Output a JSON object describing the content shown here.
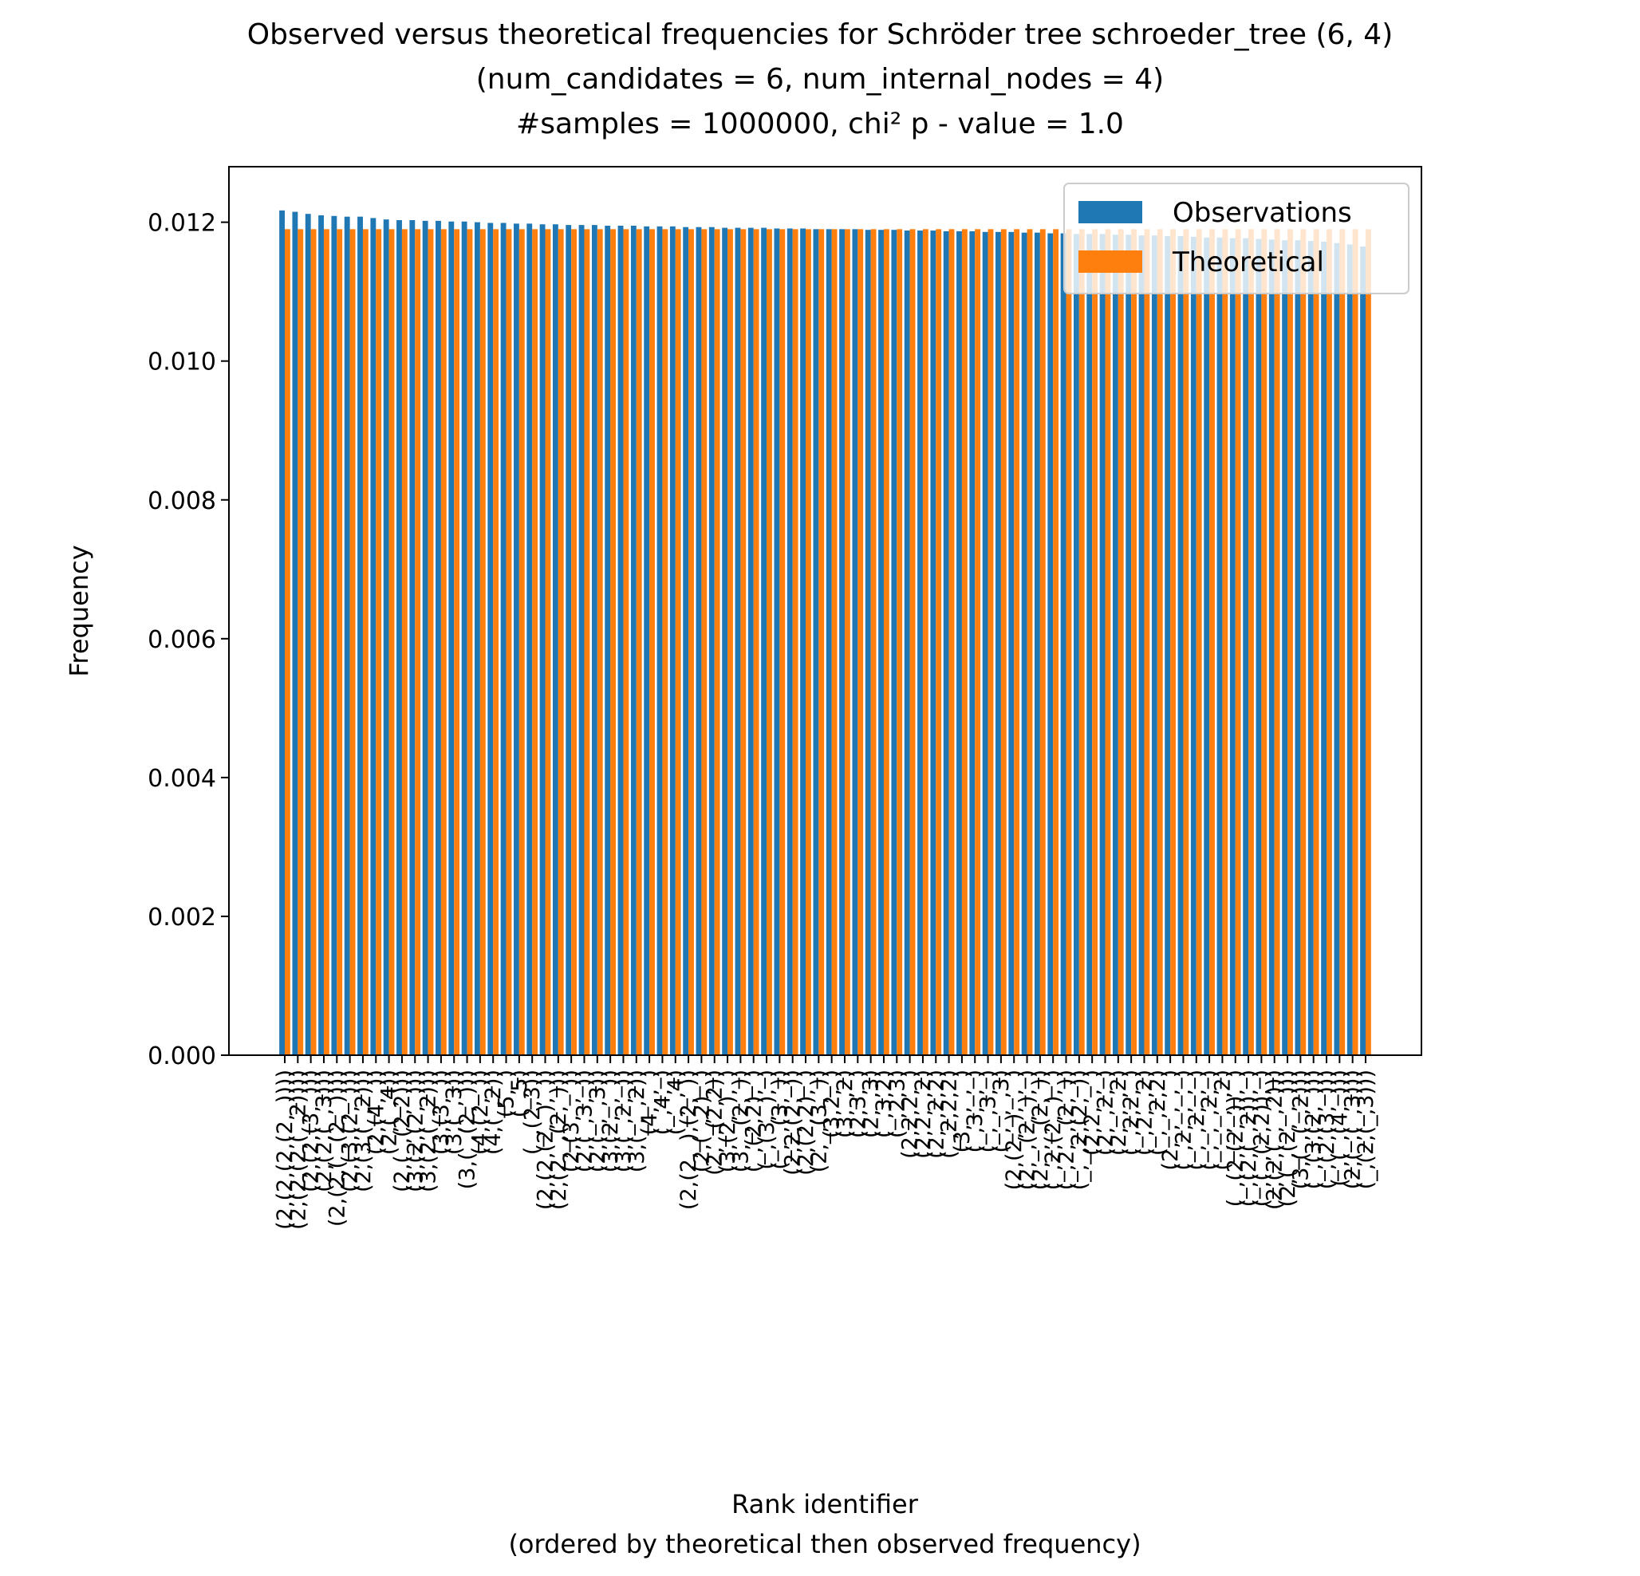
{
  "chart_data": {
    "type": "bar",
    "title": [
      "Observed versus theoretical frequencies for Schröder tree schroeder_tree (6, 4)",
      "(num_candidates = 6, num_internal_nodes = 4)",
      "#samples = 1000000, chi² p - value = 1.0"
    ],
    "xlabel": [
      "Rank identifier",
      "(ordered by theoretical then observed frequency)"
    ],
    "ylabel": "Frequency",
    "ylim": [
      0,
      0.0128
    ],
    "yticks": [
      0.0,
      0.002,
      0.004,
      0.006,
      0.008,
      0.01,
      0.012
    ],
    "ytick_labels": [
      "0.000",
      "0.002",
      "0.004",
      "0.006",
      "0.008",
      "0.010",
      "0.012"
    ],
    "legend": {
      "placement": "top-right"
    },
    "categories": [
      "(2,(2,(2,(2,_))))",
      "(2,(2,(2,(_,2))))",
      "(2,(2,(3,_)))",
      "(2,(2,(_,3)))",
      "(2,(2,(_,(2,_))))",
      "(2,(3,(2,_)))",
      "(2,(3,(_,2)))",
      "(2,(4,_))",
      "(2,(_,4))",
      "(2,(_,(2,2)))",
      "(3,(2,(2,_)))",
      "(3,(2,(_,2)))",
      "(3,(3,_))",
      "(3,(_,3))",
      "(3,(_,(2,_)))",
      "(4,(2,_))",
      "(4,(_,2))",
      "(5,_)",
      "(_,5)",
      "(_,(2,3))",
      "(2,(2,(2,_),_))",
      "(2,(2,_,(2,_)))",
      "(2,(3,_,_))",
      "(2,(_,3,_))",
      "(2,(_,_,3))",
      "(3,(2,_,_))",
      "(3,(_,2,_))",
      "(3,(_,_,2))",
      "(4,_,_)",
      "(_,4,_)",
      "(_,_,4)",
      "(2,(2,_),(2,_))",
      "(2,(_,2),_)",
      "(2,_,(2,2))",
      "(3,(2,_),_)",
      "(3,_,(2,_))",
      "(_,(2,2),_)",
      "(_,(3,_),_)",
      "(_,_,(3,_))",
      "(2,2,(2,_))",
      "(2,(2,2),_)",
      "(2,_,(3,_))",
      "(3,2,_)",
      "(3,_,2)",
      "(2,3,_)",
      "(2,_,3)",
      "(_,3,2)",
      "(_,2,3)",
      "(2,2,2,_)",
      "(2,2,_,2)",
      "(2,_,2,2)",
      "(_,2,2,2)",
      "(3,_,_,_)",
      "(_,3,_,_)",
      "(_,_,3,_)",
      "(_,_,_,3)",
      "(2,(2,_),_,_)",
      "(2,_,(2,_),_)",
      "(2,_,_,(2,_))",
      "(_,2,(2,_),_)",
      "(_,2,_,(2,_))",
      "(_,_,2,(2,_))",
      "(2,2,_,_)",
      "(2,_,2,_)",
      "(2,_,_,2)",
      "(_,2,2,_)",
      "(_,2,_,2)",
      "(_,_,2,2)",
      "(2,_,_,_,_)",
      "(_,2,_,_,_)",
      "(_,_,2,_,_)",
      "(_,_,_,2,_)",
      "(_,_,_,_,2)",
      "(_,(2,(2,_)),_)",
      "(_,(2,(_,2)),_)",
      "(_,(_,(2,2)),_)",
      "(2,(2,(_,_,2)))",
      "(2,(_,(2,_,_)))",
      "(3,(_,(_,2)))",
      "(_,(3,(2,_)))",
      "(_,(2,(3,_)))",
      "(_,(_,(4,_)))",
      "(2,(_,(_,3)))",
      "(_,(2,(_,3)))"
    ],
    "series": [
      {
        "name": "Observations",
        "color": "#1f77b4",
        "values": [
          0.01217,
          0.01215,
          0.01212,
          0.0121,
          0.01209,
          0.01208,
          0.01208,
          0.01206,
          0.01204,
          0.01203,
          0.01203,
          0.01202,
          0.01202,
          0.01201,
          0.01201,
          0.012,
          0.01199,
          0.01199,
          0.01198,
          0.01198,
          0.01197,
          0.01197,
          0.01196,
          0.01196,
          0.01196,
          0.01195,
          0.01195,
          0.01195,
          0.01194,
          0.01194,
          0.01194,
          0.01193,
          0.01193,
          0.01193,
          0.01192,
          0.01192,
          0.01192,
          0.01192,
          0.01191,
          0.01191,
          0.01191,
          0.0119,
          0.0119,
          0.0119,
          0.0119,
          0.01189,
          0.01189,
          0.01189,
          0.01188,
          0.01188,
          0.01188,
          0.01187,
          0.01187,
          0.01187,
          0.01186,
          0.01186,
          0.01186,
          0.01185,
          0.01185,
          0.01184,
          0.01184,
          0.01183,
          0.01183,
          0.01183,
          0.01182,
          0.01182,
          0.01181,
          0.01181,
          0.0118,
          0.0118,
          0.01179,
          0.01178,
          0.01178,
          0.01177,
          0.01177,
          0.01176,
          0.01175,
          0.01174,
          0.01174,
          0.01173,
          0.01172,
          0.0117,
          0.01168,
          0.01165
        ]
      },
      {
        "name": "Theoretical",
        "color": "#ff7f0e",
        "values": [
          0.0119,
          0.0119,
          0.0119,
          0.0119,
          0.0119,
          0.0119,
          0.0119,
          0.0119,
          0.0119,
          0.0119,
          0.0119,
          0.0119,
          0.0119,
          0.0119,
          0.0119,
          0.0119,
          0.0119,
          0.0119,
          0.0119,
          0.0119,
          0.0119,
          0.0119,
          0.0119,
          0.0119,
          0.0119,
          0.0119,
          0.0119,
          0.0119,
          0.0119,
          0.0119,
          0.0119,
          0.0119,
          0.0119,
          0.0119,
          0.0119,
          0.0119,
          0.0119,
          0.0119,
          0.0119,
          0.0119,
          0.0119,
          0.0119,
          0.0119,
          0.0119,
          0.0119,
          0.0119,
          0.0119,
          0.0119,
          0.0119,
          0.0119,
          0.0119,
          0.0119,
          0.0119,
          0.0119,
          0.0119,
          0.0119,
          0.0119,
          0.0119,
          0.0119,
          0.0119,
          0.0119,
          0.0119,
          0.0119,
          0.0119,
          0.0119,
          0.0119,
          0.0119,
          0.0119,
          0.0119,
          0.0119,
          0.0119,
          0.0119,
          0.0119,
          0.0119,
          0.0119,
          0.0119,
          0.0119,
          0.0119,
          0.0119,
          0.0119,
          0.0119,
          0.0119,
          0.0119,
          0.0119
        ]
      }
    ]
  }
}
